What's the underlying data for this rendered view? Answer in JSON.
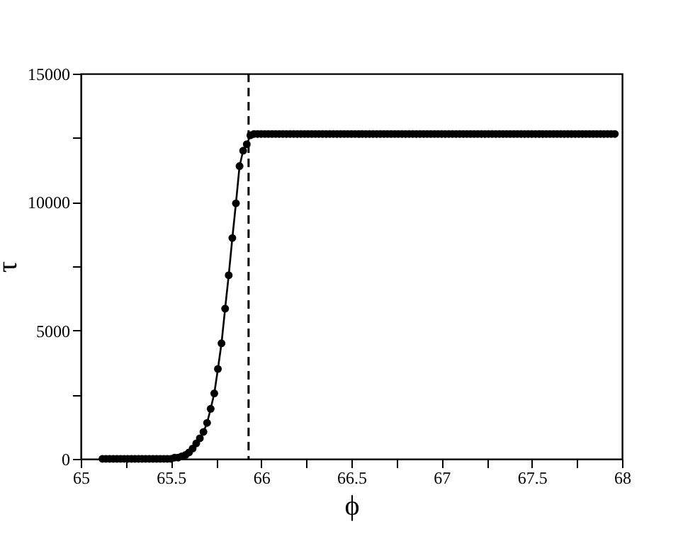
{
  "chart_data": {
    "type": "line",
    "xlabel": "ϕ",
    "ylabel": "τ",
    "x": [
      65.12,
      65.14,
      65.16,
      65.18,
      65.2,
      65.22,
      65.24,
      65.26,
      65.28,
      65.3,
      65.32,
      65.34,
      65.36,
      65.38,
      65.4,
      65.42,
      65.44,
      65.46,
      65.48,
      65.5,
      65.52,
      65.54,
      65.56,
      65.58,
      65.6,
      65.62,
      65.64,
      65.66,
      65.68,
      65.7,
      65.72,
      65.74,
      65.76,
      65.78,
      65.8,
      65.82,
      65.84,
      65.86,
      65.88,
      65.9,
      65.92,
      65.94,
      65.96,
      65.98,
      66.0,
      66.02,
      66.04,
      66.06,
      66.08,
      66.1,
      66.12,
      66.14,
      66.16,
      66.18,
      66.2,
      66.22,
      66.24,
      66.26,
      66.28,
      66.3,
      66.32,
      66.34,
      66.36,
      66.38,
      66.4,
      66.42,
      66.44,
      66.46,
      66.48,
      66.5,
      66.52,
      66.54,
      66.56,
      66.58,
      66.6,
      66.62,
      66.64,
      66.66,
      66.68,
      66.7,
      66.72,
      66.74,
      66.76,
      66.78,
      66.8,
      66.82,
      66.84,
      66.86,
      66.88,
      66.9,
      66.92,
      66.94,
      66.96,
      66.98,
      67.0,
      67.02,
      67.04,
      67.06,
      67.08,
      67.1,
      67.12,
      67.14,
      67.16,
      67.18,
      67.2,
      67.22,
      67.24,
      67.26,
      67.28,
      67.3,
      67.32,
      67.34,
      67.36,
      67.38,
      67.4,
      67.42,
      67.44,
      67.46,
      67.48,
      67.5,
      67.52,
      67.54,
      67.56,
      67.58,
      67.6,
      67.62,
      67.64,
      67.66,
      67.68,
      67.7,
      67.72,
      67.74,
      67.76,
      67.78,
      67.8,
      67.82,
      67.84,
      67.86,
      67.88,
      67.9,
      67.92,
      67.94,
      67.96
    ],
    "series": [
      {
        "color": "#000000",
        "values": [
          0,
          0,
          0,
          0,
          0,
          0,
          0,
          0,
          0,
          0,
          0,
          0,
          0,
          0,
          0,
          0,
          0,
          0,
          0,
          0,
          50,
          50,
          100,
          150,
          250,
          400,
          600,
          800,
          1050,
          1400,
          1950,
          2550,
          3500,
          4500,
          5850,
          7150,
          8600,
          9950,
          11400,
          12000,
          12250,
          12600,
          12650,
          12650,
          12650,
          12650,
          12650,
          12650,
          12650,
          12650,
          12650,
          12650,
          12650,
          12650,
          12650,
          12650,
          12650,
          12650,
          12650,
          12650,
          12650,
          12650,
          12650,
          12650,
          12650,
          12650,
          12650,
          12650,
          12650,
          12650,
          12650,
          12650,
          12650,
          12650,
          12650,
          12650,
          12650,
          12650,
          12650,
          12650,
          12650,
          12650,
          12650,
          12650,
          12650,
          12650,
          12650,
          12650,
          12650,
          12650,
          12650,
          12650,
          12650,
          12650,
          12650,
          12650,
          12650,
          12650,
          12650,
          12650,
          12650,
          12650,
          12650,
          12650,
          12650,
          12650,
          12650,
          12650,
          12650,
          12650,
          12650,
          12650,
          12650,
          12650,
          12650,
          12650,
          12650,
          12650,
          12650,
          12650,
          12650,
          12650,
          12650,
          12650,
          12650,
          12650,
          12650,
          12650,
          12650,
          12650,
          12650,
          12650,
          12650,
          12650,
          12650,
          12650,
          12650,
          12650,
          12650,
          12650,
          12650,
          12650,
          12650
        ]
      }
    ],
    "xlim": [
      65,
      68
    ],
    "xticks": [
      65,
      {
        "value": 65.25,
        "label": null
      },
      65.5,
      {
        "value": 65.75,
        "label": null
      },
      66,
      {
        "value": 66.25,
        "label": null
      },
      66.5,
      {
        "value": 66.75,
        "label": null
      },
      67,
      {
        "value": 67.25,
        "label": null
      },
      67.5,
      {
        "value": 67.75,
        "label": null
      },
      68
    ],
    "ylim": [
      0,
      15000
    ],
    "yticks": [
      0,
      {
        "value": 2500,
        "label": null
      },
      5000,
      {
        "value": 7500,
        "label": null
      },
      10000,
      {
        "value": 12500,
        "label": null
      },
      15000
    ],
    "ref_lines": [
      {
        "axis": "x",
        "value": 65.93,
        "color": "#000000",
        "line_style": "dashed"
      }
    ],
    "grid": false,
    "marker": "circle",
    "line_style": "solid"
  }
}
